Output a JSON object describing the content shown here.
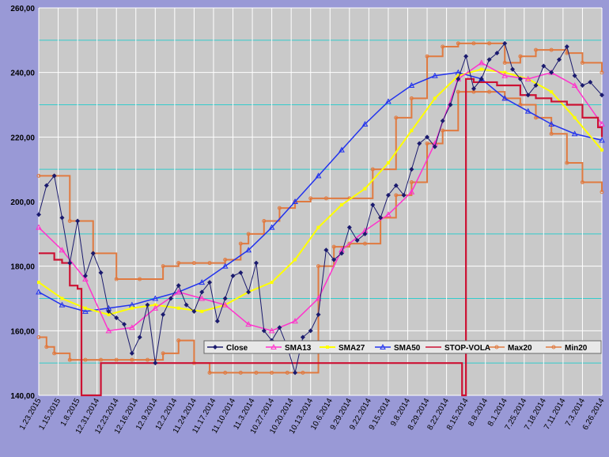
{
  "chart_data": {
    "type": "line",
    "title": "",
    "xlabel": "",
    "ylabel": "",
    "ylim": [
      140,
      260
    ],
    "y_ticks": [
      "260,00",
      "240,00",
      "220,00",
      "200,00",
      "180,00",
      "160,00",
      "140,00"
    ],
    "x_tick_labels": [
      "1.23.2015",
      "1.15.2015",
      "1.8.2015",
      "12.31.2014",
      "12.23.2014",
      "12.16.2014",
      "12.9.2014",
      "12.2.2014",
      "11.24.2014",
      "11.17.2014",
      "11.10.2014",
      "11.3.2014",
      "10.27.2014",
      "10.20.2014",
      "10.13.2014",
      "10.6.2014",
      "9.29.2014",
      "9.22.2014",
      "9.15.2014",
      "9.8.2014",
      "8.29.2014",
      "8.22.2014",
      "8.15.2014",
      "8.8.2014",
      "8.1.2014",
      "7.25.2014",
      "7.18.2014",
      "7.11.2014",
      "7.3.2014",
      "6.26.2014"
    ],
    "n_points": 146,
    "grid": true,
    "legend_position": "bottom-right",
    "colors": {
      "Close": "#1a1a6e",
      "SMA13": "#ff33cc",
      "SMA27": "#ffff00",
      "SMA50": "#2233ee",
      "STOP-VOLA": "#cc1133",
      "Max20": "#e07a40",
      "Min20": "#e07a40"
    },
    "series": [
      {
        "name": "Close",
        "x": [
          0,
          2,
          4,
          6,
          8,
          10,
          12,
          14,
          16,
          18,
          20,
          22,
          24,
          26,
          28,
          30,
          32,
          34,
          36,
          38,
          40,
          42,
          44,
          46,
          48,
          50,
          52,
          54,
          56,
          58,
          60,
          62,
          64,
          66,
          68,
          70,
          72,
          74,
          76,
          78,
          80,
          82,
          84,
          86,
          88,
          90,
          92,
          94,
          96,
          98,
          100,
          102,
          104,
          106,
          108,
          110,
          112,
          114,
          116,
          118,
          120,
          122,
          124,
          126,
          128,
          130,
          132,
          134,
          136,
          138,
          140,
          142,
          145
        ],
        "y": [
          196,
          205,
          208,
          195,
          181,
          194,
          177,
          184,
          178,
          166,
          164,
          162,
          153,
          158,
          168,
          150,
          165,
          170,
          174,
          168,
          166,
          172,
          175,
          163,
          170,
          177,
          178,
          172,
          181,
          160,
          157,
          161,
          155,
          147,
          158,
          160,
          165,
          185,
          182,
          184,
          192,
          188,
          190,
          199,
          195,
          202,
          205,
          202,
          210,
          218,
          220,
          217,
          225,
          230,
          238,
          245,
          235,
          238,
          244,
          246,
          249,
          241,
          238,
          233,
          236,
          242,
          240,
          244,
          248,
          239,
          236,
          237,
          233
        ]
      },
      {
        "name": "SMA13",
        "x": [
          0,
          6,
          12,
          18,
          24,
          30,
          36,
          42,
          48,
          54,
          60,
          66,
          72,
          78,
          84,
          90,
          96,
          102,
          108,
          114,
          120,
          126,
          132,
          138,
          145
        ],
        "y": [
          192,
          185,
          176,
          160,
          161,
          167,
          172,
          170,
          168,
          162,
          160,
          163,
          170,
          185,
          191,
          196,
          203,
          218,
          238,
          243,
          239,
          238,
          240,
          236,
          224
        ]
      },
      {
        "name": "SMA27",
        "x": [
          0,
          6,
          12,
          18,
          24,
          30,
          36,
          42,
          48,
          54,
          60,
          66,
          72,
          78,
          84,
          90,
          96,
          102,
          108,
          114,
          120,
          126,
          132,
          138,
          145
        ],
        "y": [
          175,
          170,
          167,
          165,
          167,
          168,
          167,
          166,
          168,
          172,
          175,
          182,
          192,
          199,
          204,
          212,
          222,
          232,
          239,
          241,
          240,
          238,
          234,
          226,
          216
        ]
      },
      {
        "name": "SMA50",
        "x": [
          0,
          6,
          12,
          18,
          24,
          30,
          36,
          42,
          48,
          54,
          60,
          66,
          72,
          78,
          84,
          90,
          96,
          102,
          108,
          114,
          120,
          126,
          132,
          138,
          145
        ],
        "y": [
          172,
          168,
          166,
          167,
          168,
          170,
          172,
          175,
          180,
          185,
          192,
          200,
          208,
          216,
          224,
          231,
          236,
          239,
          240,
          238,
          232,
          228,
          224,
          221,
          219
        ]
      },
      {
        "name": "STOP-VOLA",
        "x": [
          0,
          2,
          4,
          6,
          8,
          10,
          11,
          13,
          16,
          18,
          100,
          102,
          104,
          106,
          108,
          109,
          110,
          112,
          118,
          124,
          128,
          132,
          136,
          140,
          144,
          145
        ],
        "y": [
          184,
          184,
          182,
          181,
          174,
          173,
          140,
          140,
          150,
          150,
          150,
          150,
          150,
          150,
          150,
          140,
          238,
          237,
          236,
          233,
          232,
          231,
          230,
          226,
          223,
          220
        ]
      },
      {
        "name": "Max20",
        "x": [
          0,
          4,
          8,
          14,
          20,
          26,
          32,
          36,
          40,
          44,
          48,
          52,
          54,
          58,
          62,
          66,
          70,
          74,
          80,
          86,
          92,
          96,
          100,
          104,
          108,
          112,
          116,
          120,
          124,
          128,
          132,
          136,
          140,
          145
        ],
        "y": [
          208,
          208,
          194,
          184,
          176,
          176,
          180,
          181,
          181,
          181,
          182,
          187,
          190,
          194,
          198,
          200,
          201,
          201,
          201,
          210,
          226,
          232,
          245,
          248,
          249,
          249,
          249,
          243,
          245,
          247,
          247,
          246,
          243,
          240
        ]
      },
      {
        "name": "Min20",
        "x": [
          0,
          2,
          4,
          8,
          12,
          16,
          20,
          24,
          28,
          32,
          36,
          40,
          44,
          48,
          52,
          56,
          60,
          64,
          68,
          72,
          76,
          80,
          84,
          88,
          92,
          96,
          100,
          104,
          108,
          112,
          116,
          120,
          124,
          128,
          132,
          136,
          140,
          145
        ],
        "y": [
          158,
          155,
          153,
          151,
          151,
          151,
          151,
          151,
          151,
          153,
          157,
          150,
          147,
          147,
          147,
          147,
          147,
          147,
          147,
          180,
          186,
          187,
          187,
          195,
          202,
          206,
          218,
          222,
          234,
          234,
          234,
          232,
          230,
          226,
          221,
          212,
          206,
          203
        ]
      }
    ]
  }
}
